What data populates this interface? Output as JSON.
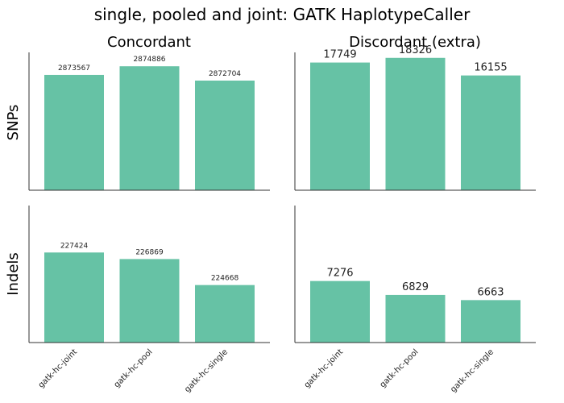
{
  "title": "single, pooled and joint: GATK HaplotypeCaller",
  "columns": [
    "Concordant",
    "Discordant (extra)"
  ],
  "rows": [
    "SNPs",
    "Indels"
  ],
  "colors": {
    "bar": "#66c2a5",
    "axis": "#333333"
  },
  "chart_data": [
    {
      "type": "bar",
      "title": "Concordant",
      "row": "SNPs",
      "categories": [
        "gatk-hc-joint",
        "gatk-hc-pool",
        "gatk-hc-single"
      ],
      "values": [
        2873567,
        2874886,
        2872704
      ],
      "ylim": [
        2856000,
        2877000
      ],
      "label_size": "small",
      "xlabel": "",
      "ylabel": ""
    },
    {
      "type": "bar",
      "title": "Discordant (extra)",
      "row": "SNPs",
      "categories": [
        "gatk-hc-joint",
        "gatk-hc-pool",
        "gatk-hc-single"
      ],
      "values": [
        17749,
        18326,
        16155
      ],
      "ylim": [
        2000,
        19000
      ],
      "label_size": "large",
      "xlabel": "",
      "ylabel": ""
    },
    {
      "type": "bar",
      "title": "Concordant",
      "row": "Indels",
      "categories": [
        "gatk-hc-joint",
        "gatk-hc-pool",
        "gatk-hc-single"
      ],
      "values": [
        227424,
        226869,
        224668
      ],
      "ylim": [
        219800,
        231400
      ],
      "label_size": "small",
      "xlabel": "",
      "ylabel": ""
    },
    {
      "type": "bar",
      "title": "Discordant (extra)",
      "row": "Indels",
      "categories": [
        "gatk-hc-joint",
        "gatk-hc-pool",
        "gatk-hc-single"
      ],
      "values": [
        7276,
        6829,
        6663
      ],
      "ylim": [
        5300,
        9700
      ],
      "label_size": "large",
      "xlabel": "",
      "ylabel": ""
    }
  ]
}
